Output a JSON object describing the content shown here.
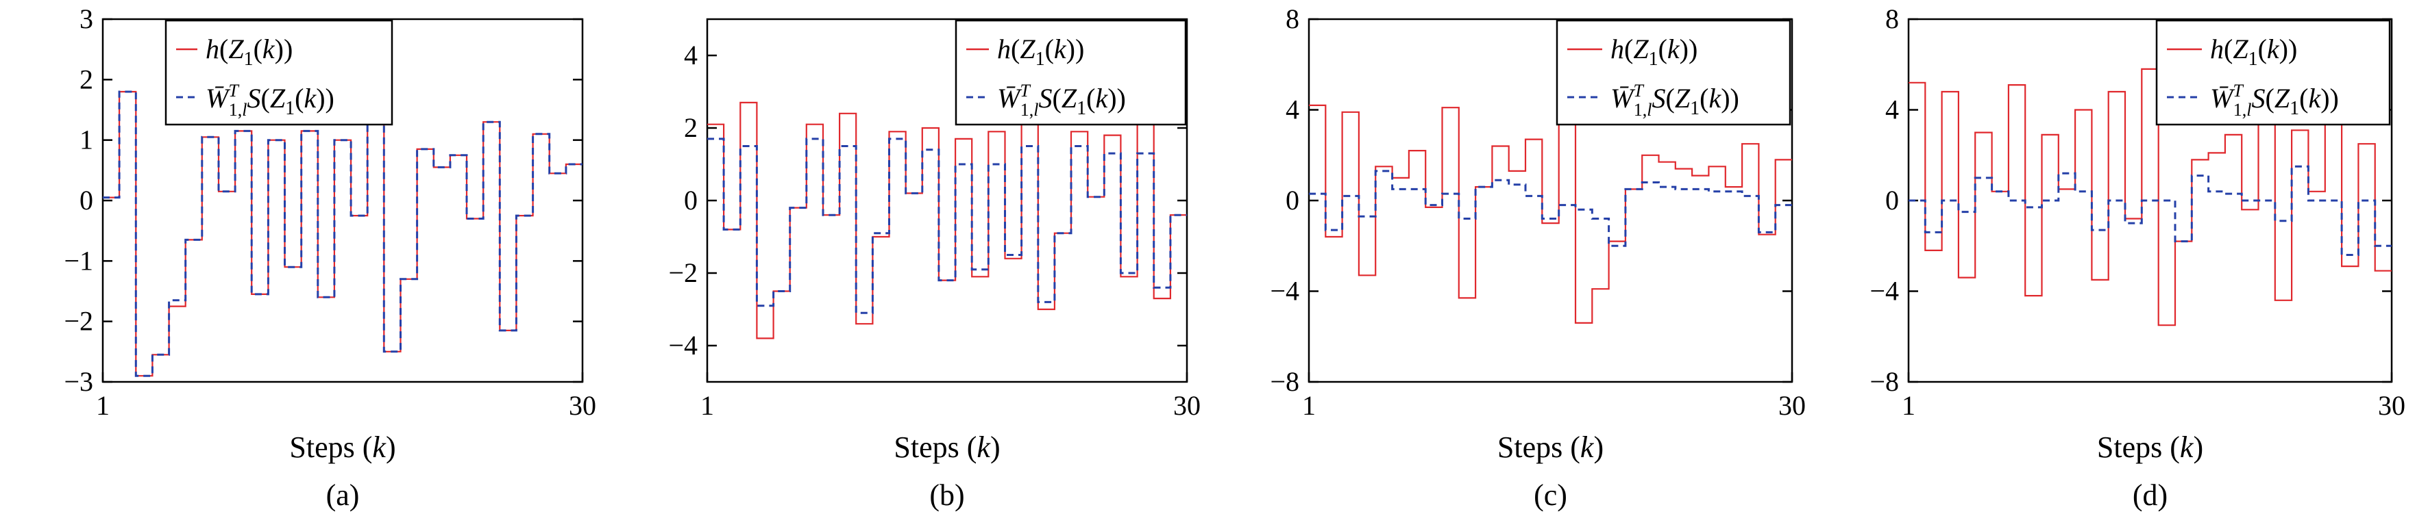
{
  "chart_data": [
    {
      "type": "line",
      "caption": "(a)",
      "xlabel_prefix": "Steps (",
      "xlabel_var": "k",
      "xlabel_suffix": ")",
      "x_ticks": [
        "1",
        "30"
      ],
      "x_range": [
        1,
        30
      ],
      "ylim": [
        -3,
        3
      ],
      "y_ticks": [
        {
          "value": 3,
          "label": "3"
        },
        {
          "value": 2,
          "label": "2"
        },
        {
          "value": 1,
          "label": "1"
        },
        {
          "value": 0,
          "label": "0"
        },
        {
          "value": -1,
          "label": "−1"
        },
        {
          "value": -2,
          "label": "−2"
        },
        {
          "value": -3,
          "label": "−3"
        }
      ],
      "legend_placement": "top-center",
      "series": [
        {
          "legend": "h(Z1(k))",
          "color": "#e0282d",
          "style": "solid",
          "values": [
            0.05,
            1.8,
            -2.9,
            -2.55,
            -1.75,
            -0.65,
            1.05,
            0.15,
            1.15,
            -1.55,
            1.0,
            -1.1,
            1.15,
            -1.6,
            1.0,
            -0.25,
            2.3,
            -2.5,
            -1.3,
            0.85,
            0.55,
            0.75,
            -0.3,
            1.3,
            -2.15,
            -0.25,
            1.1,
            0.45,
            0.6
          ]
        },
        {
          "legend": "W̄1,lT S(Z1(k))",
          "color": "#2540a8",
          "style": "dashed",
          "values": [
            0.05,
            1.8,
            -2.9,
            -2.55,
            -1.65,
            -0.65,
            1.05,
            0.15,
            1.15,
            -1.55,
            1.0,
            -1.1,
            1.15,
            -1.6,
            1.0,
            -0.25,
            2.3,
            -2.5,
            -1.3,
            0.85,
            0.55,
            0.75,
            -0.3,
            1.3,
            -2.15,
            -0.25,
            1.1,
            0.45,
            0.6
          ]
        }
      ]
    },
    {
      "type": "line",
      "caption": "(b)",
      "xlabel_prefix": "Steps (",
      "xlabel_var": "k",
      "xlabel_suffix": ")",
      "x_ticks": [
        "1",
        "30"
      ],
      "x_range": [
        1,
        30
      ],
      "ylim": [
        -5,
        5
      ],
      "y_ticks": [
        {
          "value": 4,
          "label": "4"
        },
        {
          "value": 2,
          "label": "2"
        },
        {
          "value": 0,
          "label": "0"
        },
        {
          "value": -2,
          "label": "−2"
        },
        {
          "value": -4,
          "label": "−4"
        }
      ],
      "legend_placement": "top-right",
      "series": [
        {
          "legend": "h(Z1(k))",
          "color": "#e0282d",
          "style": "solid",
          "values": [
            2.1,
            -0.8,
            2.7,
            -3.8,
            -2.5,
            -0.2,
            2.1,
            -0.4,
            2.4,
            -3.4,
            -1.0,
            1.9,
            0.2,
            2.0,
            -2.2,
            1.7,
            -2.1,
            1.9,
            -1.6,
            2.5,
            -3.0,
            -0.9,
            1.9,
            0.1,
            1.8,
            -2.1,
            2.5,
            -2.7,
            -0.4
          ]
        },
        {
          "legend": "W̄1,lT S(Z1(k))",
          "color": "#2540a8",
          "style": "dashed",
          "values": [
            1.7,
            -0.8,
            1.5,
            -2.9,
            -2.5,
            -0.2,
            1.7,
            -0.4,
            1.5,
            -3.1,
            -0.9,
            1.7,
            0.2,
            1.4,
            -2.2,
            1.0,
            -1.9,
            1.0,
            -1.5,
            1.5,
            -2.8,
            -0.9,
            1.5,
            0.1,
            1.3,
            -2.0,
            1.3,
            -2.4,
            -0.4
          ]
        }
      ]
    },
    {
      "type": "line",
      "caption": "(c)",
      "xlabel_prefix": "Steps (",
      "xlabel_var": "k",
      "xlabel_suffix": ")",
      "x_ticks": [
        "1",
        "30"
      ],
      "x_range": [
        1,
        30
      ],
      "ylim": [
        -8,
        8
      ],
      "y_ticks": [
        {
          "value": 8,
          "label": "8"
        },
        {
          "value": 4,
          "label": "4"
        },
        {
          "value": 0,
          "label": "0"
        },
        {
          "value": -4,
          "label": "−4"
        },
        {
          "value": -8,
          "label": "−8"
        }
      ],
      "legend_placement": "top-right",
      "series": [
        {
          "legend": "h(Z1(k))",
          "color": "#e0282d",
          "style": "solid",
          "values": [
            4.2,
            -1.6,
            3.9,
            -3.3,
            1.5,
            1.0,
            2.2,
            -0.3,
            4.1,
            -4.3,
            0.6,
            2.4,
            1.3,
            2.7,
            -1.0,
            6.5,
            -5.4,
            -3.9,
            -1.8,
            0.5,
            2.0,
            1.7,
            1.4,
            1.1,
            1.5,
            0.6,
            2.5,
            -1.5,
            1.8
          ]
        },
        {
          "legend": "W̄1,lT S(Z1(k))",
          "color": "#2540a8",
          "style": "dashed",
          "values": [
            0.3,
            -1.3,
            0.2,
            -0.7,
            1.3,
            0.5,
            0.5,
            -0.2,
            0.3,
            -0.8,
            0.6,
            0.9,
            0.7,
            0.2,
            -0.8,
            -0.2,
            -0.4,
            -0.8,
            -2.0,
            0.5,
            0.8,
            0.6,
            0.5,
            0.5,
            0.4,
            0.4,
            0.2,
            -1.4,
            -0.2
          ]
        }
      ]
    },
    {
      "type": "line",
      "caption": "(d)",
      "xlabel_prefix": "Steps (",
      "xlabel_var": "k",
      "xlabel_suffix": ")",
      "x_ticks": [
        "1",
        "30"
      ],
      "x_range": [
        1,
        30
      ],
      "ylim": [
        -8,
        8
      ],
      "y_ticks": [
        {
          "value": 8,
          "label": "8"
        },
        {
          "value": 4,
          "label": "4"
        },
        {
          "value": 0,
          "label": "0"
        },
        {
          "value": -4,
          "label": "−4"
        },
        {
          "value": -8,
          "label": "−8"
        }
      ],
      "legend_placement": "top-right",
      "series": [
        {
          "legend": "h(Z1(k))",
          "color": "#e0282d",
          "style": "solid",
          "values": [
            5.2,
            -2.2,
            4.8,
            -3.4,
            3.0,
            0.4,
            5.1,
            -4.2,
            2.9,
            0.5,
            4.0,
            -3.5,
            4.8,
            -0.8,
            5.8,
            -5.5,
            -1.8,
            1.8,
            2.1,
            2.9,
            -0.4,
            5.0,
            -4.4,
            3.1,
            0.4,
            3.7,
            -2.9,
            2.5,
            -3.1
          ]
        },
        {
          "legend": "W̄1,lT S(Z1(k))",
          "color": "#2540a8",
          "style": "dashed",
          "values": [
            0.0,
            -1.4,
            0.0,
            -0.5,
            1.0,
            0.4,
            0.0,
            -0.3,
            0.0,
            1.2,
            0.4,
            -1.3,
            0.0,
            -1.0,
            0.0,
            0.0,
            -1.8,
            1.1,
            0.4,
            0.3,
            0.0,
            0.0,
            -0.9,
            1.5,
            0.0,
            0.0,
            -2.4,
            0.0,
            -2.0
          ]
        }
      ]
    }
  ]
}
